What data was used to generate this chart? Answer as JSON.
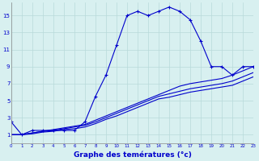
{
  "xlabel": "Graphe des temératures (°c)",
  "x_hours": [
    0,
    1,
    2,
    3,
    4,
    5,
    6,
    7,
    8,
    9,
    10,
    11,
    12,
    13,
    14,
    15,
    16,
    17,
    18,
    19,
    20,
    21,
    22,
    23
  ],
  "line1": [
    2.5,
    1.0,
    1.5,
    1.5,
    1.5,
    1.5,
    1.5,
    2.5,
    5.5,
    8.0,
    11.5,
    15.0,
    15.5,
    15.0,
    15.5,
    16.0,
    15.5,
    14.5,
    12.0,
    9.0,
    9.0,
    8.0,
    9.0,
    9.0
  ],
  "line2": [
    1.0,
    1.0,
    1.2,
    1.4,
    1.6,
    1.8,
    2.0,
    2.2,
    2.7,
    3.2,
    3.7,
    4.2,
    4.7,
    5.2,
    5.7,
    6.2,
    6.7,
    7.0,
    7.2,
    7.4,
    7.6,
    8.0,
    8.5,
    9.0
  ],
  "line3": [
    1.0,
    1.0,
    1.2,
    1.4,
    1.5,
    1.7,
    1.9,
    2.1,
    2.5,
    3.0,
    3.5,
    4.0,
    4.5,
    5.0,
    5.5,
    5.8,
    6.1,
    6.4,
    6.6,
    6.8,
    7.0,
    7.3,
    7.8,
    8.3
  ],
  "line4": [
    1.0,
    1.0,
    1.1,
    1.3,
    1.4,
    1.6,
    1.7,
    1.9,
    2.3,
    2.8,
    3.2,
    3.7,
    4.2,
    4.7,
    5.2,
    5.4,
    5.7,
    6.0,
    6.2,
    6.4,
    6.6,
    6.8,
    7.3,
    7.8
  ],
  "line_color": "#0000cc",
  "bg_color": "#d8f0f0",
  "grid_color": "#b8dada",
  "ylim": [
    0,
    16.5
  ],
  "yticks": [
    1,
    3,
    5,
    7,
    9,
    11,
    13,
    15
  ],
  "xticks": [
    0,
    1,
    2,
    3,
    4,
    5,
    6,
    7,
    8,
    9,
    10,
    11,
    12,
    13,
    14,
    15,
    16,
    17,
    18,
    19,
    20,
    21,
    22,
    23
  ],
  "xlim": [
    0,
    23
  ]
}
